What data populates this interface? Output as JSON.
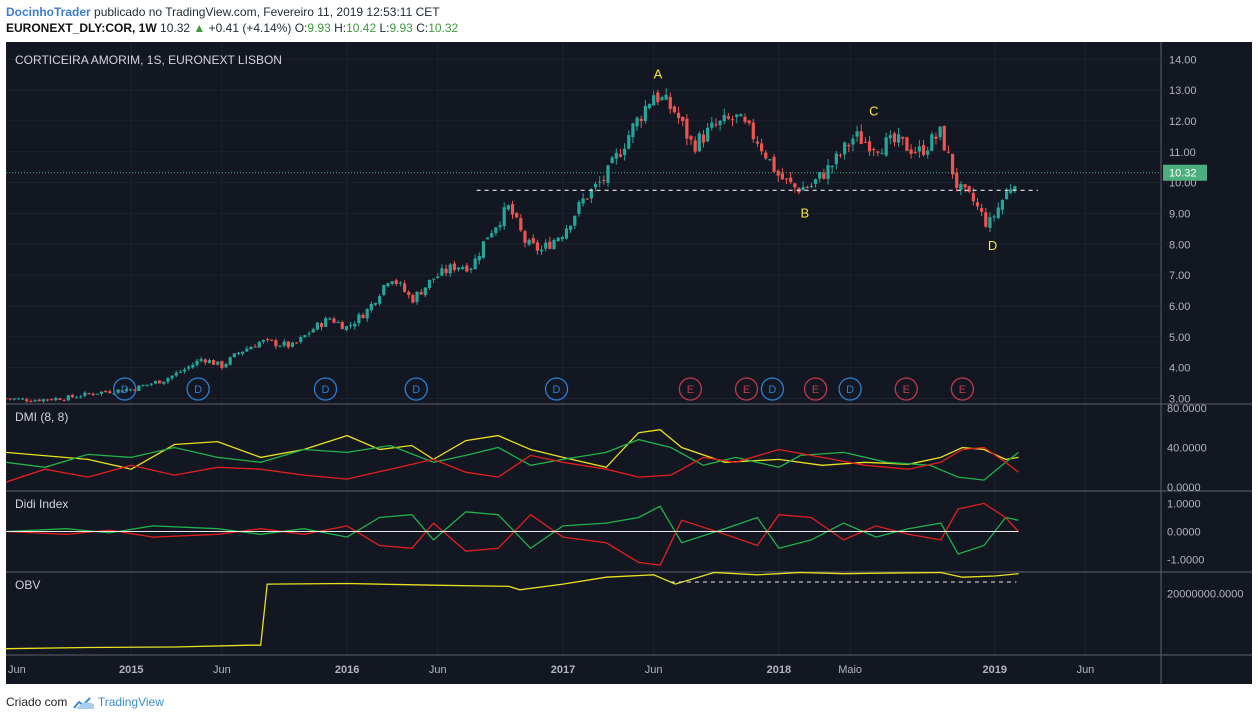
{
  "header": {
    "author": "DocinhoTrader",
    "published_text": "publicado no TradingView.com, Fevereiro 11, 2019 12:53:11 CET",
    "symbol": "EURONEXT_DLY:COR, 1W",
    "last": "10.32",
    "up_arrow": "▲",
    "change": "+0.41 (+4.14%)",
    "o_label": "O:",
    "o_value": "9.93",
    "h_label": "H:",
    "h_value": "10.42",
    "l_label": "L:",
    "l_value": "9.93",
    "c_label": "C:",
    "c_value": "10.32"
  },
  "colors": {
    "background": "#131722",
    "grid": "#1e2230",
    "up": "#26a69a",
    "down": "#ef5350",
    "price_label": "#4caf80",
    "dmi_plus": "#22b14c",
    "dmi_minus": "#e02020",
    "adx": "#e8e020",
    "obv": "#e8e020",
    "annotation": "#f5e63a",
    "dividend_circle": "#2a7fd4",
    "earnings_circle": "#c0394b"
  },
  "chart_data": [
    {
      "type": "candlestick",
      "title": "CORTICEIRA AMORIM, 1S, EURONEXT LISBON",
      "y_ticks": [
        "14.00",
        "13.00",
        "12.00",
        "11.00",
        "10.00",
        "9.00",
        "8.00",
        "7.00",
        "6.00",
        "5.00",
        "4.00",
        "3.00"
      ],
      "ylim": [
        2.95,
        14.3
      ],
      "last_price_label": "10.32",
      "x_ticks": [
        "Jun",
        "2015",
        "Jun",
        "2016",
        "Jun",
        "2017",
        "Jun",
        "2018",
        "Maio",
        "2019",
        "Jun"
      ],
      "x_tick_dates": [
        2014.42,
        2015.0,
        2015.42,
        2016.0,
        2016.42,
        2017.0,
        2017.42,
        2018.0,
        2018.33,
        2019.0,
        2019.42
      ],
      "bold_ticks": [
        "2015",
        "2016",
        "2017",
        "2018",
        "2019"
      ],
      "xlim": [
        2014.42,
        2019.77
      ],
      "close_path": [
        [
          2014.42,
          3.0
        ],
        [
          2014.55,
          2.95
        ],
        [
          2014.7,
          3.02
        ],
        [
          2014.85,
          3.2
        ],
        [
          2015.0,
          3.3
        ],
        [
          2015.15,
          3.6
        ],
        [
          2015.25,
          3.95
        ],
        [
          2015.33,
          4.3
        ],
        [
          2015.42,
          4.05
        ],
        [
          2015.5,
          4.5
        ],
        [
          2015.6,
          4.85
        ],
        [
          2015.75,
          4.7
        ],
        [
          2015.85,
          5.3
        ],
        [
          2015.92,
          5.6
        ],
        [
          2016.0,
          5.3
        ],
        [
          2016.1,
          5.9
        ],
        [
          2016.2,
          7.0
        ],
        [
          2016.3,
          6.2
        ],
        [
          2016.4,
          6.9
        ],
        [
          2016.5,
          7.3
        ],
        [
          2016.58,
          7.3
        ],
        [
          2016.65,
          8.3
        ],
        [
          2016.75,
          9.2
        ],
        [
          2016.83,
          8.0
        ],
        [
          2016.9,
          7.8
        ],
        [
          2017.0,
          8.4
        ],
        [
          2017.1,
          9.5
        ],
        [
          2017.2,
          10.2
        ],
        [
          2017.3,
          11.5
        ],
        [
          2017.42,
          12.9
        ],
        [
          2017.52,
          12.3
        ],
        [
          2017.6,
          11.2
        ],
        [
          2017.7,
          11.8
        ],
        [
          2017.8,
          12.1
        ],
        [
          2017.9,
          11.4
        ],
        [
          2018.0,
          10.2
        ],
        [
          2018.08,
          9.8
        ],
        [
          2018.15,
          9.9
        ],
        [
          2018.25,
          10.6
        ],
        [
          2018.35,
          11.5
        ],
        [
          2018.45,
          11.2
        ],
        [
          2018.55,
          11.3
        ],
        [
          2018.65,
          11.0
        ],
        [
          2018.75,
          11.6
        ],
        [
          2018.83,
          9.8
        ],
        [
          2018.9,
          9.4
        ],
        [
          2018.97,
          8.6
        ],
        [
          2019.04,
          9.5
        ],
        [
          2019.11,
          10.32
        ]
      ],
      "support_level": 9.75,
      "support_range": [
        2016.6,
        2019.2
      ],
      "wave_labels": [
        {
          "label": "A",
          "date": 2017.44,
          "price": 13.25,
          "pos": "above"
        },
        {
          "label": "B",
          "date": 2018.12,
          "price": 9.25,
          "pos": "below"
        },
        {
          "label": "C",
          "date": 2018.44,
          "price": 12.05,
          "pos": "above"
        },
        {
          "label": "D",
          "date": 2018.99,
          "price": 8.2,
          "pos": "below"
        }
      ],
      "events": [
        {
          "label": "D",
          "type": "dividend",
          "date": 2014.97
        },
        {
          "label": "D",
          "type": "dividend",
          "date": 2015.31
        },
        {
          "label": "D",
          "type": "dividend",
          "date": 2015.9
        },
        {
          "label": "D",
          "type": "dividend",
          "date": 2016.32
        },
        {
          "label": "D",
          "type": "dividend",
          "date": 2016.97
        },
        {
          "label": "E",
          "type": "earnings",
          "date": 2017.59
        },
        {
          "label": "E",
          "type": "earnings",
          "date": 2017.85
        },
        {
          "label": "D",
          "type": "dividend",
          "date": 2017.97
        },
        {
          "label": "E",
          "type": "earnings",
          "date": 2018.17
        },
        {
          "label": "D",
          "type": "dividend",
          "date": 2018.33
        },
        {
          "label": "E",
          "type": "earnings",
          "date": 2018.59
        },
        {
          "label": "E",
          "type": "earnings",
          "date": 2018.85
        }
      ]
    },
    {
      "type": "line",
      "title": "DMI (8, 8)",
      "y_ticks": [
        "80.0000",
        "40.0000",
        "0.0000"
      ],
      "ylim": [
        0,
        80
      ],
      "series": [
        {
          "key": "adx",
          "points": [
            [
              2014.42,
              35
            ],
            [
              2014.8,
              28
            ],
            [
              2015.0,
              18
            ],
            [
              2015.2,
              43
            ],
            [
              2015.4,
              46
            ],
            [
              2015.6,
              30
            ],
            [
              2015.8,
              38
            ],
            [
              2016.0,
              52
            ],
            [
              2016.15,
              38
            ],
            [
              2016.3,
              42
            ],
            [
              2016.4,
              28
            ],
            [
              2016.55,
              47
            ],
            [
              2016.7,
              52
            ],
            [
              2016.85,
              38
            ],
            [
              2017.0,
              30
            ],
            [
              2017.2,
              20
            ],
            [
              2017.35,
              55
            ],
            [
              2017.45,
              58
            ],
            [
              2017.55,
              40
            ],
            [
              2017.75,
              25
            ],
            [
              2018.0,
              28
            ],
            [
              2018.2,
              22
            ],
            [
              2018.4,
              25
            ],
            [
              2018.6,
              23
            ],
            [
              2018.75,
              30
            ],
            [
              2018.85,
              40
            ],
            [
              2018.95,
              38
            ],
            [
              2019.05,
              28
            ],
            [
              2019.11,
              30
            ]
          ]
        },
        {
          "key": "plus",
          "points": [
            [
              2014.42,
              25
            ],
            [
              2014.6,
              20
            ],
            [
              2014.8,
              33
            ],
            [
              2015.0,
              30
            ],
            [
              2015.2,
              40
            ],
            [
              2015.4,
              30
            ],
            [
              2015.6,
              25
            ],
            [
              2015.8,
              38
            ],
            [
              2016.0,
              35
            ],
            [
              2016.2,
              42
            ],
            [
              2016.4,
              25
            ],
            [
              2016.55,
              32
            ],
            [
              2016.7,
              40
            ],
            [
              2016.85,
              22
            ],
            [
              2017.0,
              28
            ],
            [
              2017.2,
              35
            ],
            [
              2017.35,
              48
            ],
            [
              2017.5,
              40
            ],
            [
              2017.65,
              22
            ],
            [
              2017.8,
              30
            ],
            [
              2018.0,
              20
            ],
            [
              2018.1,
              32
            ],
            [
              2018.3,
              35
            ],
            [
              2018.5,
              25
            ],
            [
              2018.7,
              22
            ],
            [
              2018.83,
              10
            ],
            [
              2018.95,
              7
            ],
            [
              2019.05,
              25
            ],
            [
              2019.11,
              35
            ]
          ]
        },
        {
          "key": "minus",
          "points": [
            [
              2014.42,
              5
            ],
            [
              2014.6,
              18
            ],
            [
              2014.8,
              10
            ],
            [
              2015.0,
              22
            ],
            [
              2015.2,
              12
            ],
            [
              2015.4,
              20
            ],
            [
              2015.6,
              18
            ],
            [
              2015.8,
              12
            ],
            [
              2016.0,
              8
            ],
            [
              2016.2,
              18
            ],
            [
              2016.4,
              28
            ],
            [
              2016.55,
              15
            ],
            [
              2016.7,
              10
            ],
            [
              2016.85,
              32
            ],
            [
              2017.0,
              25
            ],
            [
              2017.2,
              18
            ],
            [
              2017.35,
              10
            ],
            [
              2017.5,
              12
            ],
            [
              2017.65,
              30
            ],
            [
              2017.8,
              25
            ],
            [
              2018.0,
              38
            ],
            [
              2018.2,
              30
            ],
            [
              2018.4,
              22
            ],
            [
              2018.6,
              18
            ],
            [
              2018.75,
              25
            ],
            [
              2018.85,
              38
            ],
            [
              2018.95,
              40
            ],
            [
              2019.05,
              25
            ],
            [
              2019.11,
              15
            ]
          ]
        }
      ]
    },
    {
      "type": "line",
      "title": "Didi Index",
      "y_ticks": [
        "1.0000",
        "0.0000",
        "-1.0000"
      ],
      "ylim": [
        -1.3,
        1.3
      ],
      "series": [
        {
          "key": "green",
          "points": [
            [
              2014.42,
              0
            ],
            [
              2014.7,
              0.1
            ],
            [
              2014.9,
              -0.05
            ],
            [
              2015.1,
              0.2
            ],
            [
              2015.4,
              0.1
            ],
            [
              2015.6,
              -0.1
            ],
            [
              2015.8,
              0.1
            ],
            [
              2016.0,
              -0.2
            ],
            [
              2016.15,
              0.5
            ],
            [
              2016.3,
              0.6
            ],
            [
              2016.4,
              -0.3
            ],
            [
              2016.55,
              0.7
            ],
            [
              2016.7,
              0.6
            ],
            [
              2016.85,
              -0.6
            ],
            [
              2017.0,
              0.2
            ],
            [
              2017.2,
              0.3
            ],
            [
              2017.35,
              0.5
            ],
            [
              2017.45,
              0.9
            ],
            [
              2017.55,
              -0.4
            ],
            [
              2017.75,
              0.1
            ],
            [
              2017.9,
              0.5
            ],
            [
              2018.0,
              -0.6
            ],
            [
              2018.15,
              -0.3
            ],
            [
              2018.3,
              0.3
            ],
            [
              2018.45,
              -0.2
            ],
            [
              2018.6,
              0.1
            ],
            [
              2018.75,
              0.3
            ],
            [
              2018.83,
              -0.8
            ],
            [
              2018.95,
              -0.5
            ],
            [
              2019.05,
              0.5
            ],
            [
              2019.11,
              0.4
            ]
          ]
        },
        {
          "key": "red",
          "points": [
            [
              2014.42,
              0
            ],
            [
              2014.7,
              -0.1
            ],
            [
              2014.9,
              0.05
            ],
            [
              2015.1,
              -0.2
            ],
            [
              2015.4,
              -0.1
            ],
            [
              2015.6,
              0.1
            ],
            [
              2015.8,
              -0.1
            ],
            [
              2016.0,
              0.2
            ],
            [
              2016.15,
              -0.5
            ],
            [
              2016.3,
              -0.6
            ],
            [
              2016.4,
              0.3
            ],
            [
              2016.55,
              -0.7
            ],
            [
              2016.7,
              -0.6
            ],
            [
              2016.85,
              0.6
            ],
            [
              2017.0,
              -0.2
            ],
            [
              2017.2,
              -0.4
            ],
            [
              2017.35,
              -1.1
            ],
            [
              2017.45,
              -1.2
            ],
            [
              2017.55,
              0.4
            ],
            [
              2017.75,
              -0.1
            ],
            [
              2017.9,
              -0.5
            ],
            [
              2018.0,
              0.6
            ],
            [
              2018.15,
              0.5
            ],
            [
              2018.3,
              -0.3
            ],
            [
              2018.45,
              0.2
            ],
            [
              2018.6,
              -0.1
            ],
            [
              2018.75,
              -0.3
            ],
            [
              2018.83,
              0.8
            ],
            [
              2018.95,
              1.0
            ],
            [
              2019.05,
              0.5
            ],
            [
              2019.11,
              0.0
            ]
          ]
        }
      ]
    },
    {
      "type": "line",
      "title": "OBV",
      "y_ticks": [
        "20000000.0000"
      ],
      "ylim": [
        -30000000,
        35000000
      ],
      "series": [
        {
          "key": "obv",
          "points": [
            [
              2014.42,
              -28000000
            ],
            [
              2014.8,
              -27000000
            ],
            [
              2015.2,
              -26500000
            ],
            [
              2015.55,
              -25000000
            ],
            [
              2015.6,
              -25000000
            ],
            [
              2015.63,
              28000000
            ],
            [
              2016.0,
              28500000
            ],
            [
              2016.4,
              27000000
            ],
            [
              2016.75,
              26000000
            ],
            [
              2016.8,
              23000000
            ],
            [
              2017.0,
              28000000
            ],
            [
              2017.2,
              34000000
            ],
            [
              2017.42,
              36000000
            ],
            [
              2017.52,
              28000000
            ],
            [
              2017.7,
              38000000
            ],
            [
              2017.9,
              36000000
            ],
            [
              2018.1,
              38000000
            ],
            [
              2018.3,
              37000000
            ],
            [
              2018.5,
              37500000
            ],
            [
              2018.75,
              38000000
            ],
            [
              2018.85,
              34000000
            ],
            [
              2019.0,
              35000000
            ],
            [
              2019.11,
              37000000
            ]
          ]
        }
      ],
      "support_range": [
        2017.5,
        2019.1
      ]
    }
  ],
  "footer": {
    "created_with": "Criado com",
    "brand": "TradingView"
  }
}
